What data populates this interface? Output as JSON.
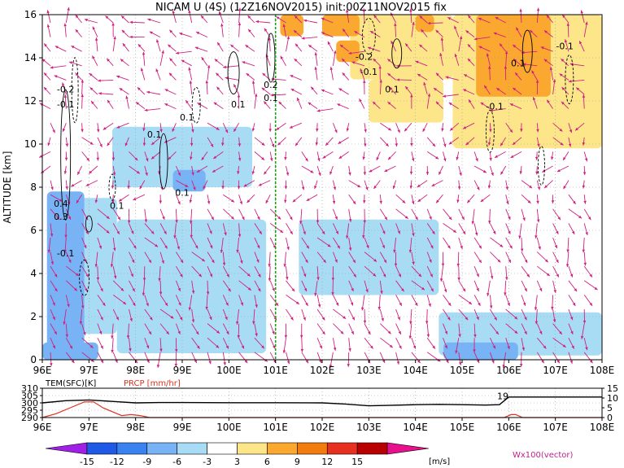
{
  "title": "NICAM U (4S) (12Z16NOV2015) init:00Z11NOV2015 fix",
  "chart_data": [
    {
      "type": "heatmap",
      "name": "main-cross-section",
      "xlabel": "",
      "ylabel": "ALTITUDE [km]",
      "x_ticks": [
        "96E",
        "97E",
        "98E",
        "99E",
        "100E",
        "101E",
        "102E",
        "103E",
        "104E",
        "105E",
        "106E",
        "107E",
        "108E"
      ],
      "x_values": [
        96,
        97,
        98,
        99,
        100,
        101,
        102,
        103,
        104,
        105,
        106,
        107,
        108
      ],
      "xlim": [
        96,
        108
      ],
      "y_ticks": [
        "0",
        "2",
        "4",
        "6",
        "8",
        "10",
        "12",
        "14",
        "16"
      ],
      "y_values": [
        0,
        2,
        4,
        6,
        8,
        10,
        12,
        14,
        16
      ],
      "ylim": [
        0,
        16
      ],
      "grid": true,
      "marked_longitude": 101,
      "regions": [
        {
          "level": -3,
          "lon": [
            96.2,
            97.6
          ],
          "alt": [
            1.2,
            7.5
          ]
        },
        {
          "level": -3,
          "lon": [
            97.6,
            100.8
          ],
          "alt": [
            0.3,
            6.5
          ]
        },
        {
          "level": -3,
          "lon": [
            101.5,
            104.5
          ],
          "alt": [
            3.0,
            6.5
          ]
        },
        {
          "level": -3,
          "lon": [
            104.5,
            108.0
          ],
          "alt": [
            0.2,
            2.2
          ]
        },
        {
          "level": -3,
          "lon": [
            97.5,
            100.5
          ],
          "alt": [
            8.0,
            10.8
          ]
        },
        {
          "level": -6,
          "lon": [
            96.1,
            96.9
          ],
          "alt": [
            0.0,
            7.8
          ]
        },
        {
          "level": -6,
          "lon": [
            96.0,
            97.2
          ],
          "alt": [
            0.0,
            0.8
          ]
        },
        {
          "level": -6,
          "lon": [
            98.8,
            99.5
          ],
          "alt": [
            7.8,
            8.8
          ]
        },
        {
          "level": -6,
          "lon": [
            104.6,
            106.2
          ],
          "alt": [
            0.0,
            0.8
          ]
        },
        {
          "level": 3,
          "lon": [
            102.6,
            104.8
          ],
          "alt": [
            13.0,
            16.0
          ]
        },
        {
          "level": 3,
          "lon": [
            104.8,
            108.0
          ],
          "alt": [
            9.8,
            16.0
          ]
        },
        {
          "level": 3,
          "lon": [
            103.0,
            104.6
          ],
          "alt": [
            11.0,
            13.0
          ]
        },
        {
          "level": 6,
          "lon": [
            101.1,
            101.6
          ],
          "alt": [
            15.0,
            16.0
          ]
        },
        {
          "level": 6,
          "lon": [
            102.0,
            102.8
          ],
          "alt": [
            15.0,
            16.0
          ]
        },
        {
          "level": 6,
          "lon": [
            104.0,
            104.4
          ],
          "alt": [
            15.2,
            16.0
          ]
        },
        {
          "level": 6,
          "lon": [
            105.3,
            106.9
          ],
          "alt": [
            12.2,
            16.0
          ]
        },
        {
          "level": 6,
          "lon": [
            102.3,
            102.8
          ],
          "alt": [
            13.8,
            14.8
          ]
        }
      ],
      "contour_labels": [
        {
          "text": "-0.2",
          "lon": 96.5,
          "alt": 12.4
        },
        {
          "text": "-0.1",
          "lon": 96.5,
          "alt": 11.7
        },
        {
          "text": "0.1",
          "lon": 98.4,
          "alt": 10.3
        },
        {
          "text": "0.1",
          "lon": 99.1,
          "alt": 11.1
        },
        {
          "text": "0.1",
          "lon": 99.0,
          "alt": 7.6
        },
        {
          "text": "0.1",
          "lon": 97.6,
          "alt": 7.0
        },
        {
          "text": "0.4",
          "lon": 96.4,
          "alt": 7.1
        },
        {
          "text": "0.3",
          "lon": 96.4,
          "alt": 6.5
        },
        {
          "text": "-0.1",
          "lon": 96.5,
          "alt": 4.8
        },
        {
          "text": "0.1",
          "lon": 100.2,
          "alt": 11.7
        },
        {
          "text": "0.2",
          "lon": 100.9,
          "alt": 12.6
        },
        {
          "text": "0.1",
          "lon": 100.9,
          "alt": 12.0
        },
        {
          "text": "-0.2",
          "lon": 102.9,
          "alt": 13.9
        },
        {
          "text": "-0.1",
          "lon": 103.0,
          "alt": 13.2
        },
        {
          "text": "0.1",
          "lon": 103.5,
          "alt": 12.4
        },
        {
          "text": "-0.1",
          "lon": 105.7,
          "alt": 11.6
        },
        {
          "text": "0.1",
          "lon": 106.2,
          "alt": 13.6
        },
        {
          "text": "-0.1",
          "lon": 107.2,
          "alt": 14.4
        }
      ]
    },
    {
      "type": "line",
      "name": "surface-panel",
      "series": [
        {
          "name": "TEM(SFC)[K]",
          "color": "#000000",
          "x": [
            96,
            96.5,
            97,
            97.5,
            98,
            98.5,
            99,
            100,
            101,
            102,
            102.5,
            103,
            103.5,
            104,
            104.5,
            105,
            105.5,
            105.8,
            106,
            106.2,
            107,
            108
          ],
          "values": [
            300,
            301.5,
            302,
            301,
            300,
            300.2,
            300.2,
            300.1,
            300.1,
            300,
            299.2,
            298,
            298.4,
            298.8,
            299,
            298.8,
            298.5,
            298.8,
            304,
            304,
            304,
            304
          ]
        },
        {
          "name": "PRCP [mm/hr]",
          "color": "#e03020",
          "x": [
            96,
            96.3,
            96.6,
            96.9,
            97.1,
            97.3,
            97.5,
            97.7,
            97.9,
            98.1,
            98.3,
            98.5,
            99,
            100,
            105.9,
            106.05,
            106.15,
            106.3,
            108
          ],
          "values": [
            0,
            2,
            5,
            8,
            8,
            5,
            3,
            1,
            1.5,
            1,
            0,
            0,
            0,
            0,
            0,
            1.5,
            1.5,
            0,
            0
          ]
        }
      ],
      "x_ticks": [
        "96E",
        "97E",
        "98E",
        "99E",
        "100E",
        "101E",
        "102E",
        "103E",
        "104E",
        "105E",
        "106E",
        "107E",
        "108E"
      ],
      "xlim": [
        96,
        108
      ],
      "y_left_ticks": [
        "290",
        "295",
        "300",
        "305",
        "310"
      ],
      "ylim_left": [
        290,
        310
      ],
      "y_right_ticks": [
        "0",
        "5",
        "10",
        "15"
      ],
      "ylim_right": [
        0,
        15
      ],
      "annotation": "19",
      "grid": true
    },
    {
      "type": "colorbar",
      "name": "u-wind-colorbar",
      "tick_labels": [
        "-15",
        "-12",
        "-9",
        "-6",
        "-3",
        "3",
        "6",
        "9",
        "12",
        "15"
      ],
      "colors": [
        "#a020e8",
        "#1e5ae6",
        "#3a82f0",
        "#78b4f5",
        "#a8dcf5",
        "#ffffff",
        "#fde68a",
        "#fba830",
        "#f37c10",
        "#e83020",
        "#b80000",
        "#e8108c"
      ],
      "unit": "[m/s]",
      "vector_label": "Wx100(vector)"
    }
  ]
}
